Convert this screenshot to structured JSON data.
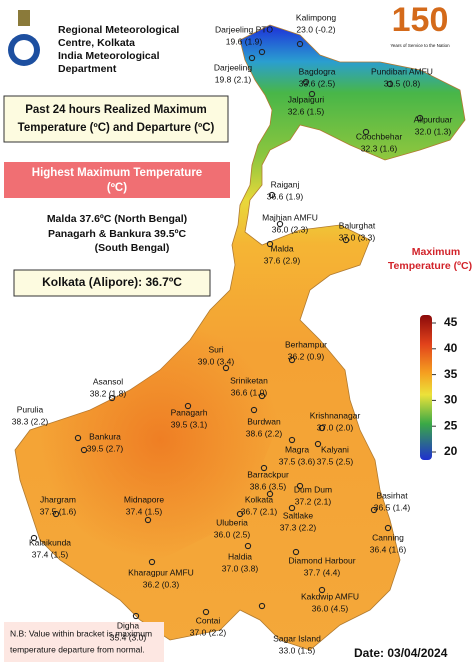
{
  "header": {
    "org_lines": [
      "Regional Meteorological",
      "Centre, Kolkata",
      "India Meteorological",
      "Department"
    ],
    "logo_number": "150",
    "logo_tagline": "Years of Service to the Nation"
  },
  "panel_title": [
    "Past 24 hours Realized Maximum",
    "Temperature (ºC) and Departure (ºC)"
  ],
  "highest": {
    "title": [
      "Highest Maximum Temperature",
      "(ºC)"
    ],
    "lines": [
      "Malda 37.6ºC (North Bengal)",
      "Panagarh & Bankura 39.5ºC",
      "(South Bengal)"
    ]
  },
  "kolkata": "Kolkata (Alipore): 36.7ºC",
  "legend": {
    "title": [
      "Maximum",
      "Temperature (ºC)"
    ],
    "ticks": [
      45,
      40,
      35,
      30,
      25,
      20
    ]
  },
  "stations": [
    {
      "name": "Darjeeling PTO",
      "reading": "19.6 (1.9)"
    },
    {
      "name": "Kalimpong",
      "reading": "23.0 (-0.2)"
    },
    {
      "name": "Darjeeling",
      "reading": "19.8 (2.1)"
    },
    {
      "name": "Bagdogra",
      "reading": "33.6 (2.5)"
    },
    {
      "name": "Pundibari AMFU",
      "reading": "31.5 (0.8)"
    },
    {
      "name": "Jalpaiguri",
      "reading": "32.6 (1.5)"
    },
    {
      "name": "Alipurduar",
      "reading": "32.0 (1.3)"
    },
    {
      "name": "Coochbehar",
      "reading": "32.3 (1.6)"
    },
    {
      "name": "Raiganj",
      "reading": "36.6 (1.9)"
    },
    {
      "name": "Majhian AMFU",
      "reading": "36.0 (2.3)"
    },
    {
      "name": "Balurghat",
      "reading": "37.0 (3.3)"
    },
    {
      "name": "Malda",
      "reading": "37.6 (2.9)"
    },
    {
      "name": "Berhampur",
      "reading": "36.2 (0.9)"
    },
    {
      "name": "Suri",
      "reading": "39.0 (3.4)"
    },
    {
      "name": "Asansol",
      "reading": "38.2 (1.8)"
    },
    {
      "name": "Sriniketan",
      "reading": "36.6 (1.0)"
    },
    {
      "name": "Purulia",
      "reading": "38.3 (2.2)"
    },
    {
      "name": "Panagarh",
      "reading": "39.5 (3.1)"
    },
    {
      "name": "Burdwan",
      "reading": "38.6 (2.2)"
    },
    {
      "name": "Krishnanagar",
      "reading": "37.0 (2.0)"
    },
    {
      "name": "Bankura",
      "reading": "39.5 (2.7)"
    },
    {
      "name": "Magra",
      "reading": "37.5 (3.6)"
    },
    {
      "name": "Kalyani",
      "reading": "37.5 (2.5)"
    },
    {
      "name": "Barrackpur",
      "reading": "38.6 (3.5)"
    },
    {
      "name": "Jhargram",
      "reading": "37.5 (1.6)"
    },
    {
      "name": "Midnapore",
      "reading": "37.4 (1.5)"
    },
    {
      "name": "Kolkata",
      "reading": "36.7 (2.1)"
    },
    {
      "name": "Dum Dum",
      "reading": "37.2 (2.1)"
    },
    {
      "name": "Basirhat",
      "reading": "36.5 (1.4)"
    },
    {
      "name": "Saltlake",
      "reading": "37.3 (2.2)"
    },
    {
      "name": "Uluberia",
      "reading": "36.0 (2.5)"
    },
    {
      "name": "Kalaikunda",
      "reading": "37.4 (1.5)"
    },
    {
      "name": "Canning",
      "reading": "36.4 (1.6)"
    },
    {
      "name": "Kharagpur AMFU",
      "reading": "36.2 (0.3)"
    },
    {
      "name": "Haldia",
      "reading": "37.0 (3.8)"
    },
    {
      "name": "Diamond Harbour",
      "reading": "37.7 (4.4)"
    },
    {
      "name": "Kakdwip AMFU",
      "reading": "36.0 (4.5)"
    },
    {
      "name": "Digha",
      "reading": "35.4 (3.0)"
    },
    {
      "name": "Contai",
      "reading": "37.0 (2.2)"
    },
    {
      "name": "Sagar Island",
      "reading": "33.0 (1.5)"
    }
  ],
  "footnote": [
    "N.B: Value within bracket is maximum",
    "temperature departure from normal."
  ],
  "date": "Date: 03/04/2024"
}
